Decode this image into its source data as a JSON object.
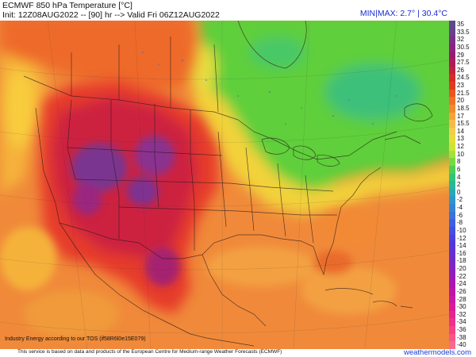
{
  "header": {
    "title": "ECMWF 850 hPa Temperature [°C]",
    "subtitle": "Init: 12Z08AUG2022 -- [90] hr --> Valid Fri 06Z12AUG2022",
    "minmax": "MIN|MAX: 2.7° | 30.4°C"
  },
  "colorbar": {
    "labels": [
      "35",
      "33.5",
      "32",
      "30.5",
      "29",
      "27.5",
      "26",
      "24.5",
      "23",
      "21.5",
      "20",
      "18.5",
      "17",
      "15.5",
      "14",
      "13",
      "12",
      "10",
      "8",
      "6",
      "4",
      "2",
      "0",
      "-2",
      "-4",
      "-6",
      "-8",
      "-10",
      "-12",
      "-14",
      "-16",
      "-18",
      "-20",
      "-22",
      "-24",
      "-26",
      "-28",
      "-30",
      "-32",
      "-34",
      "-36",
      "-38",
      "-40"
    ],
    "colors": [
      "#5b4a8c",
      "#6a3f8e",
      "#7b2f8c",
      "#8a2482",
      "#9a1a72",
      "#ad1b5a",
      "#c2203e",
      "#d52a2a",
      "#e23a22",
      "#ea5522",
      "#f07024",
      "#f3892c",
      "#f5a339",
      "#f6b94a",
      "#f2cc4c",
      "#e6dc3e",
      "#cfe335",
      "#a8e03a",
      "#78d844",
      "#4ccf55",
      "#2fc47a",
      "#25b79c",
      "#26a8b8",
      "#2d96cc",
      "#3484d6",
      "#3a72dc",
      "#3f5fe0",
      "#434ee2",
      "#4a40de",
      "#5636d8",
      "#6530d2",
      "#7529cb",
      "#8622c2",
      "#981cba",
      "#aa18b1",
      "#bc16a8",
      "#cc17a0",
      "#da1b98",
      "#e52491",
      "#ee318c",
      "#f44289",
      "#f8558a",
      "#fa6a8f"
    ]
  },
  "tos_note": "Industry Energy according to our TOS (if58R6l0e15E079)",
  "footer": {
    "note": "This service is based on data and products of the European Centre for Medium-range Weather Forecasts (ECMWF)",
    "site": "weathermodels.com"
  }
}
